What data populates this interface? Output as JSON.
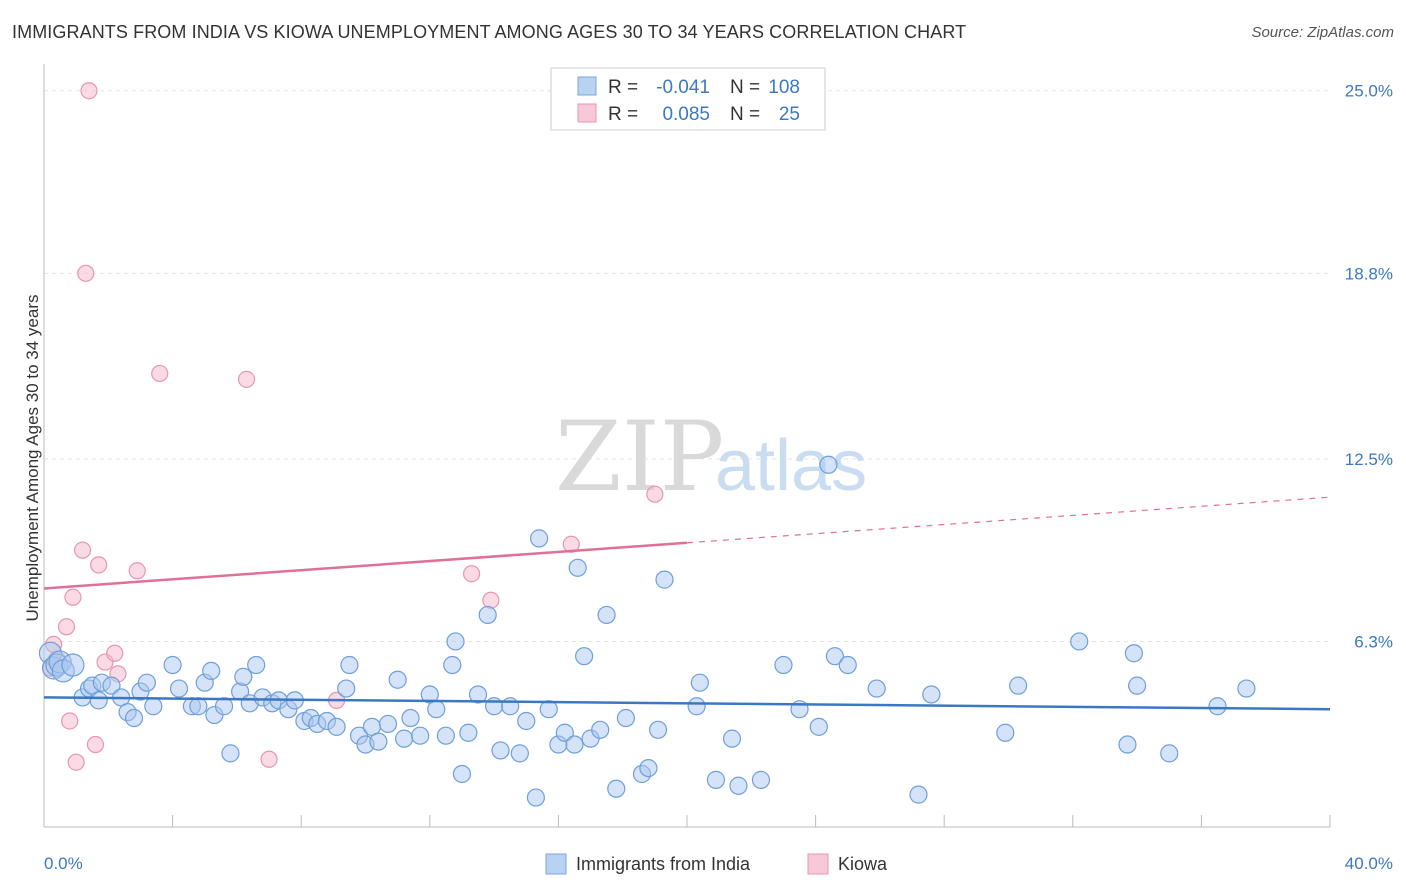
{
  "header": {
    "title": "IMMIGRANTS FROM INDIA VS KIOWA UNEMPLOYMENT AMONG AGES 30 TO 34 YEARS CORRELATION CHART",
    "source": "Source: ZipAtlas.com"
  },
  "watermark": {
    "zip": "ZIP",
    "atlas": "atlas"
  },
  "colors": {
    "blue": "#3b78c4",
    "blue_fill": "#a9c8ef",
    "pink": "#e07099",
    "pink_fill": "#f5b8cc",
    "grid": "#e4e4e4"
  },
  "chart_data": {
    "type": "scatter",
    "title": "IMMIGRANTS FROM INDIA VS KIOWA UNEMPLOYMENT AMONG AGES 30 TO 34 YEARS CORRELATION CHART",
    "xlabel": "",
    "ylabel": "Unemployment Among Ages 30 to 34 years",
    "xlim": [
      0,
      40
    ],
    "ylim": [
      0,
      25.5
    ],
    "x_tick_labels": [
      "0.0%",
      "40.0%"
    ],
    "y_ticks": [
      6.3,
      12.5,
      18.8,
      25.0
    ],
    "y_tick_labels": [
      "6.3%",
      "12.5%",
      "18.8%",
      "25.0%"
    ],
    "legend": {
      "rows": [
        {
          "r_label": "R =",
          "r_value": "-0.041",
          "n_label": "N =",
          "n_value": "108"
        },
        {
          "r_label": "R =",
          "r_value": "0.085",
          "n_label": "N =",
          "n_value": "25"
        }
      ]
    },
    "series": [
      {
        "name": "Immigrants from India",
        "color": "#3b78c4",
        "trend": {
          "x0": 0,
          "y0": 4.4,
          "x1": 40,
          "y1": 4.0,
          "dashed_from": null
        },
        "points": [
          [
            0.2,
            5.9
          ],
          [
            0.3,
            5.4
          ],
          [
            0.4,
            5.5
          ],
          [
            0.5,
            5.6
          ],
          [
            0.6,
            5.3
          ],
          [
            0.9,
            5.5
          ],
          [
            1.2,
            4.4
          ],
          [
            1.4,
            4.7
          ],
          [
            1.5,
            4.8
          ],
          [
            1.7,
            4.3
          ],
          [
            1.8,
            4.9
          ],
          [
            2.1,
            4.8
          ],
          [
            2.4,
            4.4
          ],
          [
            2.6,
            3.9
          ],
          [
            2.8,
            3.7
          ],
          [
            3.0,
            4.6
          ],
          [
            3.2,
            4.9
          ],
          [
            3.4,
            4.1
          ],
          [
            4.0,
            5.5
          ],
          [
            4.2,
            4.7
          ],
          [
            4.6,
            4.1
          ],
          [
            4.8,
            4.1
          ],
          [
            5.0,
            4.9
          ],
          [
            5.2,
            5.3
          ],
          [
            5.3,
            3.8
          ],
          [
            5.6,
            4.1
          ],
          [
            5.8,
            2.5
          ],
          [
            6.1,
            4.6
          ],
          [
            6.2,
            5.1
          ],
          [
            6.4,
            4.2
          ],
          [
            6.6,
            5.5
          ],
          [
            6.8,
            4.4
          ],
          [
            7.1,
            4.2
          ],
          [
            7.3,
            4.3
          ],
          [
            7.6,
            4.0
          ],
          [
            7.8,
            4.3
          ],
          [
            8.1,
            3.6
          ],
          [
            8.3,
            3.7
          ],
          [
            8.5,
            3.5
          ],
          [
            8.8,
            3.6
          ],
          [
            9.1,
            3.4
          ],
          [
            9.4,
            4.7
          ],
          [
            9.5,
            5.5
          ],
          [
            9.8,
            3.1
          ],
          [
            10.0,
            2.8
          ],
          [
            10.2,
            3.4
          ],
          [
            10.4,
            2.9
          ],
          [
            10.7,
            3.5
          ],
          [
            11.0,
            5.0
          ],
          [
            11.2,
            3.0
          ],
          [
            11.4,
            3.7
          ],
          [
            11.7,
            3.1
          ],
          [
            12.0,
            4.5
          ],
          [
            12.2,
            4.0
          ],
          [
            12.5,
            3.1
          ],
          [
            12.7,
            5.5
          ],
          [
            12.8,
            6.3
          ],
          [
            13.0,
            1.8
          ],
          [
            13.2,
            3.2
          ],
          [
            13.5,
            4.5
          ],
          [
            13.8,
            7.2
          ],
          [
            14.0,
            4.1
          ],
          [
            14.2,
            2.6
          ],
          [
            14.5,
            4.1
          ],
          [
            14.8,
            2.5
          ],
          [
            15.0,
            3.6
          ],
          [
            15.3,
            1.0
          ],
          [
            15.4,
            9.8
          ],
          [
            15.7,
            4.0
          ],
          [
            16.0,
            2.8
          ],
          [
            16.2,
            3.2
          ],
          [
            16.5,
            2.8
          ],
          [
            16.6,
            8.8
          ],
          [
            16.8,
            5.8
          ],
          [
            17.0,
            3.0
          ],
          [
            17.3,
            3.3
          ],
          [
            17.5,
            7.2
          ],
          [
            17.8,
            1.3
          ],
          [
            18.1,
            3.7
          ],
          [
            18.6,
            1.8
          ],
          [
            18.8,
            2.0
          ],
          [
            19.1,
            3.3
          ],
          [
            19.3,
            8.4
          ],
          [
            20.3,
            4.1
          ],
          [
            20.4,
            4.9
          ],
          [
            20.9,
            1.6
          ],
          [
            21.4,
            3.0
          ],
          [
            21.6,
            1.4
          ],
          [
            22.3,
            1.6
          ],
          [
            23.0,
            5.5
          ],
          [
            23.5,
            4.0
          ],
          [
            24.1,
            3.4
          ],
          [
            24.4,
            12.3
          ],
          [
            24.6,
            5.8
          ],
          [
            25.0,
            5.5
          ],
          [
            25.9,
            4.7
          ],
          [
            27.2,
            1.1
          ],
          [
            27.6,
            4.5
          ],
          [
            29.9,
            3.2
          ],
          [
            30.3,
            4.8
          ],
          [
            32.2,
            6.3
          ],
          [
            33.7,
            2.8
          ],
          [
            33.9,
            5.9
          ],
          [
            34.0,
            4.8
          ],
          [
            35.0,
            2.5
          ],
          [
            36.5,
            4.1
          ],
          [
            37.4,
            4.7
          ]
        ]
      },
      {
        "name": "Kiowa",
        "color": "#e07099",
        "trend": {
          "x0": 0,
          "y0": 8.1,
          "x1": 40,
          "y1": 11.2,
          "dashed_from": 20
        },
        "points": [
          [
            0.2,
            5.4
          ],
          [
            0.3,
            6.2
          ],
          [
            0.4,
            5.7
          ],
          [
            0.7,
            6.8
          ],
          [
            0.8,
            3.6
          ],
          [
            0.9,
            7.8
          ],
          [
            1.0,
            2.2
          ],
          [
            1.2,
            9.4
          ],
          [
            1.3,
            18.8
          ],
          [
            1.4,
            25.0
          ],
          [
            1.6,
            2.8
          ],
          [
            1.7,
            8.9
          ],
          [
            1.9,
            5.6
          ],
          [
            2.2,
            5.9
          ],
          [
            2.3,
            5.2
          ],
          [
            2.9,
            8.7
          ],
          [
            3.6,
            15.4
          ],
          [
            6.3,
            15.2
          ],
          [
            7.0,
            2.3
          ],
          [
            9.1,
            4.3
          ],
          [
            13.3,
            8.6
          ],
          [
            13.9,
            7.7
          ],
          [
            16.4,
            9.6
          ],
          [
            19.0,
            11.3
          ]
        ]
      }
    ],
    "bottom_legend": [
      "Immigrants from India",
      "Kiowa"
    ]
  }
}
